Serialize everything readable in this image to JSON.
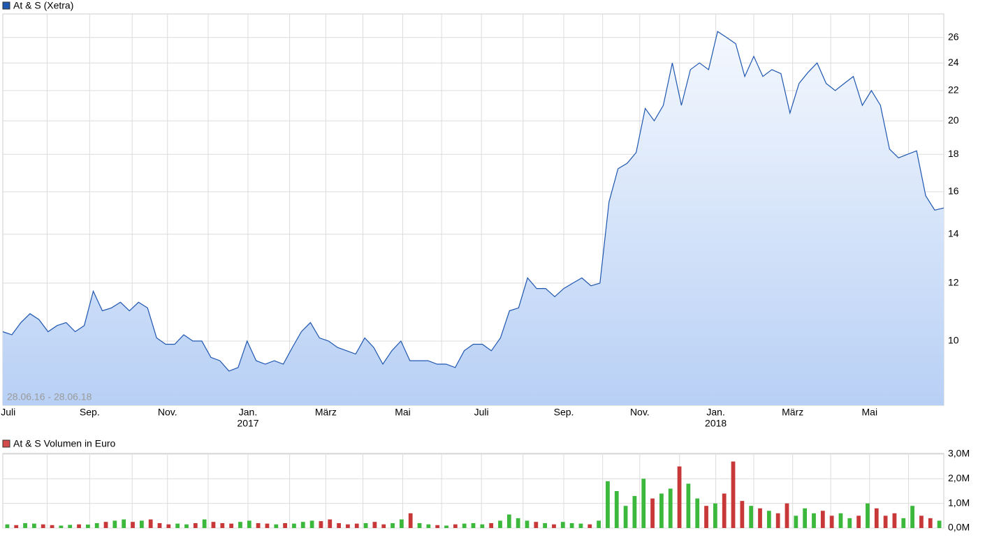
{
  "chart_data": [
    {
      "type": "area",
      "legend": "At & S (Xetra)",
      "range_label": "28.06.16 - 28.06.18",
      "color": "#1e56b0",
      "log_scale": true,
      "grid": true,
      "ylim": [
        8.17,
        28.0
      ],
      "yticks": [
        10,
        12,
        14,
        16,
        18,
        20,
        22,
        24,
        26
      ],
      "xlim": [
        0,
        104
      ],
      "xticks": [
        {
          "value": 0.6,
          "label": "Juli"
        },
        {
          "value": 9.6,
          "label": "Sep."
        },
        {
          "value": 18.2,
          "label": "Nov."
        },
        {
          "value": 27.1,
          "label": "Jan."
        },
        {
          "value": 35.7,
          "label": "März"
        },
        {
          "value": 44.2,
          "label": "Mai"
        },
        {
          "value": 52.9,
          "label": "Juli"
        },
        {
          "value": 62,
          "label": "Sep."
        },
        {
          "value": 70.4,
          "label": "Nov."
        },
        {
          "value": 78.8,
          "label": "Jan."
        },
        {
          "value": 87.3,
          "label": "März"
        },
        {
          "value": 95.8,
          "label": "Mai"
        }
      ],
      "year_labels": [
        {
          "value": 27.1,
          "label": "2017"
        },
        {
          "value": 78.8,
          "label": "2018"
        }
      ],
      "xgrid": [
        4.9,
        9.6,
        14.3,
        18.2,
        22.7,
        27.1,
        31.7,
        35.7,
        39.8,
        44.2,
        48.5,
        52.9,
        57.5,
        62,
        66.3,
        70.4,
        74.8,
        78.8,
        83,
        87.3,
        91.5,
        95.8,
        100.1
      ],
      "values": [
        10.3,
        10.2,
        10.6,
        10.9,
        10.7,
        10.3,
        10.5,
        10.6,
        10.3,
        10.5,
        11.7,
        11.0,
        11.1,
        11.3,
        11.0,
        11.3,
        11.1,
        10.1,
        9.9,
        9.9,
        10.2,
        10.0,
        10.0,
        9.5,
        9.4,
        9.1,
        9.2,
        10.0,
        9.4,
        9.3,
        9.4,
        9.3,
        9.8,
        10.3,
        10.6,
        10.1,
        10.0,
        9.8,
        9.7,
        9.6,
        10.1,
        9.8,
        9.3,
        9.7,
        10.0,
        9.4,
        9.4,
        9.4,
        9.3,
        9.3,
        9.2,
        9.7,
        9.9,
        9.9,
        9.7,
        10.1,
        11.0,
        11.1,
        12.2,
        11.8,
        11.8,
        11.5,
        11.8,
        12.0,
        12.2,
        11.9,
        12.0,
        15.5,
        17.2,
        17.5,
        18.1,
        20.8,
        20.0,
        21.0,
        24.0,
        21.0,
        23.5,
        24.0,
        23.5,
        26.5,
        26.0,
        25.5,
        23.0,
        24.5,
        23.0,
        23.5,
        23.2,
        20.5,
        22.5,
        23.3,
        24.0,
        22.5,
        22.0,
        22.5,
        23.0,
        21.0,
        22.0,
        21.0,
        18.3,
        17.8,
        18.0,
        18.2,
        15.8,
        15.1,
        15.2
      ]
    },
    {
      "type": "bar",
      "legend": "At & S Volumen in Euro",
      "color": "#d44b4b",
      "up_color": "#3cb83c",
      "down_color": "#c83838",
      "grid": true,
      "ylim": [
        0,
        3000000
      ],
      "yticks": [
        {
          "value": 0,
          "label": "0,0M"
        },
        {
          "value": 1000000,
          "label": "1,0M"
        },
        {
          "value": 2000000,
          "label": "2,0M"
        },
        {
          "value": 3000000,
          "label": "3,0M"
        }
      ],
      "values": [
        150000,
        120000,
        200000,
        180000,
        150000,
        120000,
        100000,
        130000,
        150000,
        140000,
        200000,
        250000,
        300000,
        350000,
        250000,
        300000,
        350000,
        200000,
        150000,
        180000,
        150000,
        200000,
        350000,
        250000,
        200000,
        180000,
        250000,
        300000,
        200000,
        180000,
        150000,
        200000,
        180000,
        250000,
        300000,
        280000,
        350000,
        200000,
        150000,
        180000,
        200000,
        250000,
        150000,
        200000,
        350000,
        600000,
        200000,
        150000,
        120000,
        100000,
        150000,
        180000,
        200000,
        150000,
        200000,
        300000,
        550000,
        400000,
        300000,
        250000,
        200000,
        150000,
        250000,
        200000,
        180000,
        150000,
        300000,
        1900000,
        1500000,
        900000,
        1300000,
        2000000,
        1200000,
        1400000,
        1600000,
        2500000,
        1800000,
        1200000,
        900000,
        1000000,
        1400000,
        2700000,
        1100000,
        900000,
        800000,
        700000,
        600000,
        1000000,
        500000,
        800000,
        600000,
        700000,
        500000,
        600000,
        400000,
        500000,
        1000000,
        800000,
        500000,
        600000,
        400000,
        900000,
        500000,
        400000,
        300000
      ]
    }
  ]
}
